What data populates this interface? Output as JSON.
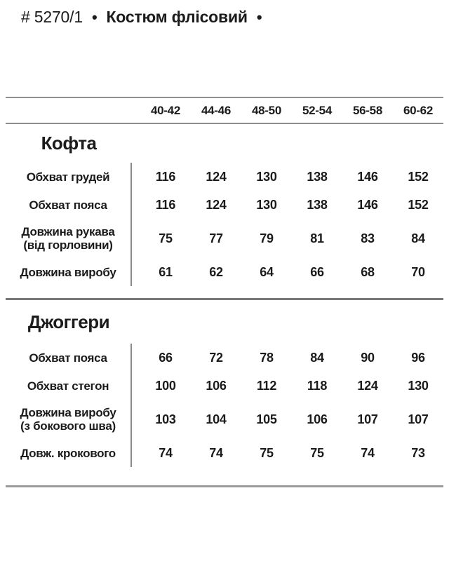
{
  "title": {
    "code": "# 5270/1",
    "bullet": "•",
    "name": "Костюм флісовий"
  },
  "table": {
    "size_headers": [
      "40-42",
      "44-46",
      "48-50",
      "52-54",
      "56-58",
      "60-62"
    ],
    "sections": [
      {
        "name": "Кофта",
        "rows": [
          {
            "label": "Обхват грудей",
            "values": [
              116,
              124,
              130,
              138,
              146,
              152
            ]
          },
          {
            "label": "Обхват пояса",
            "values": [
              116,
              124,
              130,
              138,
              146,
              152
            ]
          },
          {
            "label": "Довжина рукава",
            "label2": "(від горловини)",
            "values": [
              75,
              77,
              79,
              81,
              83,
              84
            ]
          },
          {
            "label": "Довжина виробу",
            "values": [
              61,
              62,
              64,
              66,
              68,
              70
            ]
          }
        ]
      },
      {
        "name": "Джоггери",
        "rows": [
          {
            "label": "Обхват пояса",
            "values": [
              66,
              72,
              78,
              84,
              90,
              96
            ]
          },
          {
            "label": "Обхват стегон",
            "values": [
              100,
              106,
              112,
              118,
              124,
              130
            ]
          },
          {
            "label": "Довжина виробу",
            "label2": "(з бокового шва)",
            "values": [
              103,
              104,
              105,
              106,
              107,
              107
            ]
          },
          {
            "label": "Довж. крокового",
            "values": [
              74,
              74,
              75,
              75,
              74,
              73
            ]
          }
        ]
      }
    ]
  },
  "colors": {
    "text": "#1b1b1b",
    "header_line": "#909090",
    "section_separator": "#787878",
    "vertical_divider": "#8a8a8a",
    "bottom_line": "#9a9a9a"
  }
}
